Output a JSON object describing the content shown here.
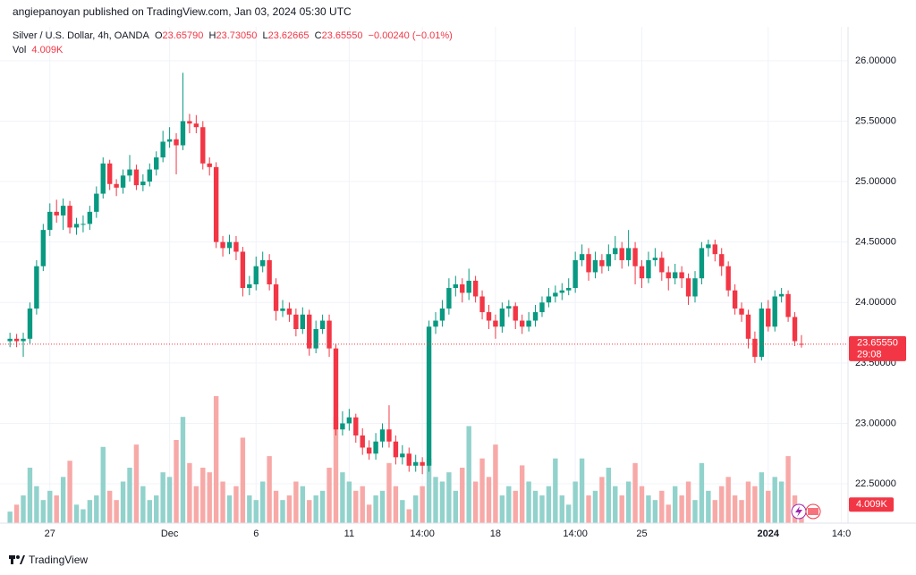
{
  "header": {
    "publisher": "angiepanoyan published on TradingView.com, Jan 03, 2024 05:30 UTC"
  },
  "footer": {
    "brand": "TradingView"
  },
  "chart_data": {
    "type": "candlestick",
    "legend": {
      "symbol": "Silver / U.S. Dollar, 4h, OANDA",
      "o": "O",
      "o_value": "23.65790",
      "h": "H",
      "h_value": "23.73050",
      "l": "L",
      "l_value": "23.62665",
      "c": "C",
      "c_value": "23.65550",
      "change": "−0.00240 (−0.01%)",
      "vol": "Vol"
    },
    "colors": {
      "up": "#089981",
      "down": "#f23645",
      "up_volume": "#92d2cc",
      "down_volume": "#f7a9a7",
      "grid": "#f0f3fa"
    },
    "grid": true,
    "xlim": [
      -1.5,
      126
    ],
    "ylim": [
      22.175,
      26.28
    ],
    "volume_ylim": [
      0,
      30
    ],
    "yticks": [
      {
        "value": 22.5,
        "label": "22.50000"
      },
      {
        "value": 23,
        "label": "23.00000"
      },
      {
        "value": 23.5,
        "label": "23.50000"
      },
      {
        "value": 24,
        "label": "24.00000"
      },
      {
        "value": 24.5,
        "label": "24.50000"
      },
      {
        "value": 25,
        "label": "25.00000"
      },
      {
        "value": 25.5,
        "label": "25.50000"
      },
      {
        "value": 26,
        "label": "26.00000"
      }
    ],
    "xticks": [
      {
        "value": 6,
        "label": "27"
      },
      {
        "value": 24,
        "label": "Dec"
      },
      {
        "value": 37,
        "label": "6"
      },
      {
        "value": 51,
        "label": "11"
      },
      {
        "value": 62,
        "label": "14:00"
      },
      {
        "value": 73,
        "label": "18"
      },
      {
        "value": 85,
        "label": "14:00"
      },
      {
        "value": 95,
        "label": "25"
      },
      {
        "value": 114,
        "label": "2024"
      },
      {
        "value": 125,
        "label": "14:0"
      }
    ],
    "last_price": 23.6555,
    "last_price_label": "23.65550",
    "countdown": "29:08",
    "last_volume_label": "4.009K",
    "ohlc": [
      [
        23.68,
        23.75,
        23.63,
        23.7
      ],
      [
        23.7,
        23.74,
        23.63,
        23.68
      ],
      [
        23.68,
        23.75,
        23.55,
        23.7
      ],
      [
        23.7,
        24.0,
        23.66,
        23.95
      ],
      [
        23.95,
        24.35,
        23.9,
        24.3
      ],
      [
        24.3,
        24.65,
        24.26,
        24.6
      ],
      [
        24.6,
        24.82,
        24.55,
        24.75
      ],
      [
        24.75,
        24.85,
        24.66,
        24.72
      ],
      [
        24.72,
        24.86,
        24.6,
        24.8
      ],
      [
        24.8,
        24.84,
        24.57,
        24.62
      ],
      [
        24.62,
        24.7,
        24.56,
        24.65
      ],
      [
        24.65,
        24.72,
        24.58,
        24.65
      ],
      [
        24.65,
        24.8,
        24.6,
        24.75
      ],
      [
        24.75,
        24.96,
        24.7,
        24.9
      ],
      [
        24.9,
        25.2,
        24.86,
        25.15
      ],
      [
        25.15,
        25.18,
        24.93,
        24.98
      ],
      [
        24.98,
        25.02,
        24.88,
        24.95
      ],
      [
        24.95,
        25.1,
        24.9,
        25.05
      ],
      [
        25.05,
        25.22,
        25.0,
        25.1
      ],
      [
        25.1,
        25.14,
        24.93,
        24.97
      ],
      [
        24.97,
        25.06,
        24.92,
        25.0
      ],
      [
        25.0,
        25.15,
        24.96,
        25.1
      ],
      [
        25.1,
        25.25,
        25.05,
        25.2
      ],
      [
        25.2,
        25.42,
        25.16,
        25.33
      ],
      [
        25.33,
        25.45,
        25.28,
        25.35
      ],
      [
        25.35,
        25.4,
        25.06,
        25.3
      ],
      [
        25.3,
        25.9,
        25.26,
        25.5
      ],
      [
        25.5,
        25.56,
        25.4,
        25.48
      ],
      [
        25.48,
        25.55,
        25.4,
        25.45
      ],
      [
        25.45,
        25.5,
        25.1,
        25.15
      ],
      [
        25.15,
        25.2,
        25.05,
        25.12
      ],
      [
        25.12,
        25.16,
        24.45,
        24.5
      ],
      [
        24.5,
        24.55,
        24.38,
        24.45
      ],
      [
        24.45,
        24.56,
        24.4,
        24.5
      ],
      [
        24.5,
        24.55,
        24.35,
        24.42
      ],
      [
        24.42,
        24.46,
        24.05,
        24.12
      ],
      [
        24.12,
        24.22,
        24.06,
        24.15
      ],
      [
        24.15,
        24.38,
        24.1,
        24.3
      ],
      [
        24.3,
        24.42,
        24.25,
        24.35
      ],
      [
        24.35,
        24.4,
        24.1,
        24.15
      ],
      [
        24.15,
        24.2,
        23.85,
        23.93
      ],
      [
        23.93,
        24.02,
        23.88,
        23.95
      ],
      [
        23.95,
        24.0,
        23.84,
        23.9
      ],
      [
        23.9,
        23.95,
        23.72,
        23.78
      ],
      [
        23.78,
        23.96,
        23.74,
        23.9
      ],
      [
        23.9,
        23.94,
        23.56,
        23.62
      ],
      [
        23.62,
        23.85,
        23.58,
        23.78
      ],
      [
        23.78,
        23.9,
        23.74,
        23.85
      ],
      [
        23.85,
        23.9,
        23.55,
        23.62
      ],
      [
        23.62,
        23.66,
        22.9,
        22.95
      ],
      [
        22.95,
        23.1,
        22.9,
        23.0
      ],
      [
        23.0,
        23.12,
        22.94,
        23.05
      ],
      [
        23.05,
        23.08,
        22.84,
        22.9
      ],
      [
        22.9,
        22.96,
        22.74,
        22.8
      ],
      [
        22.8,
        22.86,
        22.7,
        22.75
      ],
      [
        22.75,
        22.92,
        22.7,
        22.85
      ],
      [
        22.85,
        23.0,
        22.8,
        22.95
      ],
      [
        22.95,
        23.15,
        22.8,
        22.85
      ],
      [
        22.85,
        22.9,
        22.66,
        22.72
      ],
      [
        22.72,
        22.82,
        22.66,
        22.75
      ],
      [
        22.75,
        22.8,
        22.6,
        22.65
      ],
      [
        22.65,
        22.74,
        22.6,
        22.68
      ],
      [
        22.68,
        22.72,
        22.58,
        22.65
      ],
      [
        22.65,
        23.85,
        22.6,
        23.8
      ],
      [
        23.8,
        23.92,
        23.74,
        23.85
      ],
      [
        23.85,
        24.02,
        23.8,
        23.95
      ],
      [
        23.95,
        24.2,
        23.9,
        24.12
      ],
      [
        24.12,
        24.22,
        24.05,
        24.15
      ],
      [
        24.15,
        24.2,
        24.0,
        24.08
      ],
      [
        24.08,
        24.28,
        24.02,
        24.18
      ],
      [
        24.18,
        24.22,
        24.0,
        24.05
      ],
      [
        24.05,
        24.1,
        23.86,
        23.92
      ],
      [
        23.92,
        23.98,
        23.78,
        23.85
      ],
      [
        23.85,
        23.9,
        23.7,
        23.8
      ],
      [
        23.8,
        24.0,
        23.75,
        23.95
      ],
      [
        23.95,
        24.02,
        23.88,
        23.97
      ],
      [
        23.97,
        24.0,
        23.78,
        23.85
      ],
      [
        23.85,
        23.9,
        23.74,
        23.8
      ],
      [
        23.8,
        23.92,
        23.76,
        23.85
      ],
      [
        23.85,
        23.98,
        23.8,
        23.92
      ],
      [
        23.92,
        24.05,
        23.88,
        24.0
      ],
      [
        24.0,
        24.12,
        23.96,
        24.05
      ],
      [
        24.05,
        24.14,
        24.0,
        24.08
      ],
      [
        24.08,
        24.16,
        24.02,
        24.1
      ],
      [
        24.1,
        24.2,
        24.06,
        24.12
      ],
      [
        24.12,
        24.42,
        24.08,
        24.35
      ],
      [
        24.35,
        24.48,
        24.3,
        24.4
      ],
      [
        24.4,
        24.45,
        24.18,
        24.25
      ],
      [
        24.25,
        24.42,
        24.2,
        24.35
      ],
      [
        24.35,
        24.4,
        24.24,
        24.3
      ],
      [
        24.3,
        24.48,
        24.26,
        24.4
      ],
      [
        24.4,
        24.55,
        24.35,
        24.45
      ],
      [
        24.45,
        24.5,
        24.28,
        24.35
      ],
      [
        24.35,
        24.6,
        24.3,
        24.45
      ],
      [
        24.45,
        24.5,
        24.15,
        24.3
      ],
      [
        24.3,
        24.35,
        24.12,
        24.2
      ],
      [
        24.2,
        24.42,
        24.16,
        24.35
      ],
      [
        24.35,
        24.45,
        24.3,
        24.37
      ],
      [
        24.37,
        24.42,
        24.18,
        24.25
      ],
      [
        24.25,
        24.3,
        24.1,
        24.2
      ],
      [
        24.2,
        24.32,
        24.15,
        24.25
      ],
      [
        24.25,
        24.3,
        24.12,
        24.2
      ],
      [
        24.2,
        24.24,
        23.98,
        24.05
      ],
      [
        24.05,
        24.26,
        24.0,
        24.2
      ],
      [
        24.2,
        24.5,
        24.15,
        24.45
      ],
      [
        24.45,
        24.52,
        24.38,
        24.48
      ],
      [
        24.48,
        24.52,
        24.34,
        24.4
      ],
      [
        24.4,
        24.45,
        24.22,
        24.3
      ],
      [
        24.3,
        24.34,
        24.05,
        24.1
      ],
      [
        24.1,
        24.15,
        23.9,
        23.95
      ],
      [
        23.95,
        24.0,
        23.84,
        23.9
      ],
      [
        23.9,
        23.94,
        23.62,
        23.7
      ],
      [
        23.7,
        23.76,
        23.5,
        23.55
      ],
      [
        23.55,
        24.0,
        23.52,
        23.95
      ],
      [
        23.95,
        24.02,
        23.76,
        23.8
      ],
      [
        23.8,
        24.1,
        23.76,
        24.05
      ],
      [
        24.05,
        24.12,
        24.0,
        24.07
      ],
      [
        24.07,
        24.1,
        23.84,
        23.88
      ],
      [
        23.88,
        23.92,
        23.64,
        23.68
      ],
      [
        23.6579,
        23.7305,
        23.62665,
        23.6555
      ]
    ],
    "volume": [
      2.5,
      4,
      6,
      12,
      8,
      5,
      7,
      6,
      10,
      13.5,
      4,
      3,
      5,
      6,
      16.5,
      7,
      5,
      9,
      12,
      17,
      8,
      5,
      6,
      11,
      10,
      18,
      23,
      13,
      8,
      12,
      11,
      27.5,
      9,
      6,
      8,
      18.5,
      6,
      5,
      9,
      14.5,
      7,
      5,
      6,
      9,
      8,
      5,
      6,
      7,
      12,
      23,
      11,
      9,
      7,
      8,
      4,
      6,
      7,
      13,
      8,
      5,
      3,
      6,
      8,
      14,
      10,
      9,
      11,
      7,
      12,
      21,
      9,
      14,
      10,
      17,
      6,
      8,
      7,
      12.5,
      9,
      7,
      6,
      8,
      14,
      6,
      4,
      9,
      14,
      6,
      7,
      10,
      12,
      8,
      6,
      9,
      13,
      8,
      6,
      5,
      7,
      4,
      8,
      6,
      9,
      5,
      13,
      7,
      5,
      8,
      10,
      6,
      5,
      9,
      8,
      11,
      7,
      10,
      9,
      14.5,
      6,
      4.009
    ]
  }
}
